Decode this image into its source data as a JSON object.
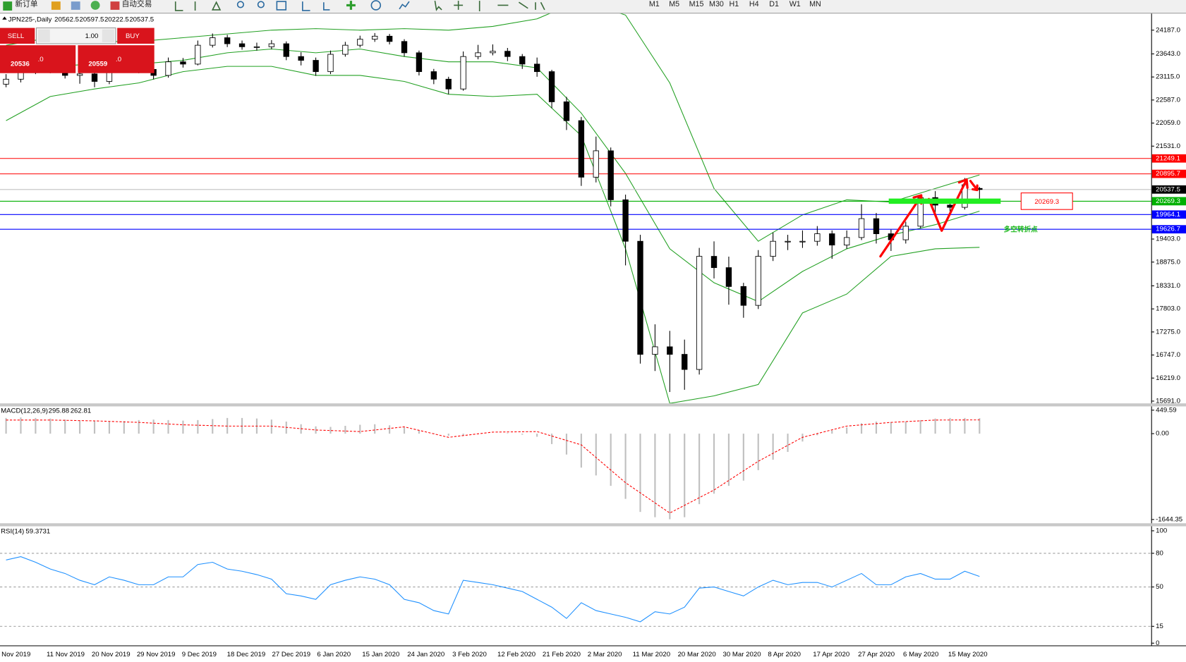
{
  "toolbar": {
    "new_order": "新订单",
    "auto_trading": "自动交易",
    "timeframes": [
      "M1",
      "M5",
      "M15",
      "M30",
      "H1",
      "H4",
      "D1",
      "W1",
      "MN"
    ]
  },
  "trade_panel": {
    "sell": "SELL",
    "buy": "BUY",
    "lot": "1.00",
    "bid": "20536",
    "bid_fraction": ".0",
    "ask": "20559",
    "ask_fraction": ".0"
  },
  "chart_data": [
    {
      "type": "candlestick",
      "symbol": "JPN225-,Daily",
      "x_labels": [
        "Nov 2019",
        "11 Nov 2019",
        "20 Nov 2019",
        "29 Nov 2019",
        "9 Dec 2019",
        "18 Dec 2019",
        "27 Dec 2019",
        "6 Jan 2020",
        "15 Jan 2020",
        "24 Jan 2020",
        "3 Feb 2020",
        "12 Feb 2020",
        "21 Feb 2020",
        "2 Mar 2020",
        "11 Mar 2020",
        "20 Mar 2020",
        "30 Mar 2020",
        "8 Apr 2020",
        "17 Apr 2020",
        "27 Apr 2020",
        "6 May 2020",
        "15 May 2020"
      ],
      "open": [
        22950,
        23064,
        23236,
        23323,
        23289,
        23151,
        23185,
        23013,
        23289,
        23358,
        23289,
        23151,
        23462,
        23410,
        23842,
        24014,
        23876,
        23807,
        23807,
        23876,
        23583,
        23496,
        23237,
        23634,
        23842,
        23980,
        24049,
        23928,
        23669,
        23237,
        23064,
        22840,
        23583,
        23669,
        23704,
        23583,
        23410,
        23237,
        22546,
        22115,
        20820,
        21424,
        20302,
        19352,
        16762,
        16935,
        16762,
        16416,
        19007,
        18748,
        18316,
        17884,
        19007,
        19352,
        19352,
        19352,
        19524,
        19265,
        19438,
        19870,
        19524,
        19386,
        19697,
        20353,
        20180,
        20129,
        20562.5
      ],
      "high": [
        23180,
        23330,
        23420,
        23400,
        23360,
        23280,
        23250,
        23380,
        23450,
        23430,
        23350,
        23560,
        23550,
        23950,
        24110,
        24080,
        23950,
        23900,
        23960,
        23930,
        23680,
        23560,
        23720,
        23920,
        24060,
        24120,
        24100,
        23980,
        23720,
        23300,
        23120,
        23700,
        23850,
        23860,
        23780,
        23640,
        23560,
        23280,
        22660,
        22200,
        21750,
        21500,
        20420,
        19500,
        17450,
        17300,
        17100,
        19200,
        19350,
        19000,
        18400,
        19150,
        19550,
        19500,
        19600,
        19700,
        19600,
        19600,
        20200,
        20000,
        19620,
        19800,
        20400,
        20500,
        20300,
        20800,
        20597.5
      ],
      "low": [
        22880,
        22990,
        23180,
        23200,
        23080,
        22960,
        22880,
        22950,
        23220,
        23200,
        23060,
        23100,
        23330,
        23380,
        23790,
        23800,
        23740,
        23720,
        23750,
        23500,
        23380,
        23140,
        23180,
        23580,
        23790,
        23920,
        23860,
        23580,
        23150,
        22950,
        22720,
        22800,
        23520,
        23610,
        23480,
        23300,
        23120,
        22400,
        21900,
        20620,
        20700,
        20150,
        18800,
        16550,
        16380,
        15900,
        15950,
        16300,
        18500,
        17900,
        17600,
        17800,
        18900,
        19150,
        19200,
        19250,
        18950,
        19180,
        19380,
        19300,
        19130,
        19300,
        19650,
        19980,
        19950,
        20080,
        20222.5
      ],
      "close": [
        23064,
        23236,
        23323,
        23289,
        23151,
        23185,
        23013,
        23289,
        23358,
        23289,
        23151,
        23462,
        23410,
        23842,
        24014,
        23876,
        23807,
        23807,
        23876,
        23583,
        23496,
        23237,
        23634,
        23842,
        23980,
        24049,
        23928,
        23669,
        23237,
        23064,
        22840,
        23583,
        23669,
        23704,
        23583,
        23410,
        23237,
        22546,
        22115,
        20820,
        21424,
        20302,
        19352,
        16762,
        16935,
        16762,
        16416,
        19007,
        18748,
        18316,
        17884,
        19007,
        19352,
        19352,
        19352,
        19524,
        19265,
        19438,
        19870,
        19524,
        19386,
        19697,
        20353,
        20180,
        20129,
        20647,
        20537.5
      ],
      "bollinger": {
        "color": "#22a022",
        "upper": [
          23842,
          24014,
          23928,
          23928,
          24014,
          24101,
          24187,
          24222,
          24187,
          24222,
          24187,
          24273,
          24446,
          24878,
          24532,
          22978,
          20561,
          19352,
          19956,
          20302,
          20250,
          20561,
          20871
        ],
        "middle": [
          23237,
          23358,
          23410,
          23410,
          23496,
          23669,
          23755,
          23669,
          23755,
          23583,
          23462,
          23462,
          23324,
          22288,
          20906,
          19179,
          18402,
          17971,
          18661,
          19179,
          19490,
          19732,
          20043
        ],
        "lower": [
          22115,
          22667,
          22840,
          22978,
          23237,
          23358,
          23358,
          23151,
          23151,
          23013,
          22719,
          22667,
          22719,
          21769,
          19179,
          15639,
          15812,
          16071,
          17712,
          18143,
          19007,
          19179,
          19214
        ]
      },
      "ylim": [
        15639,
        24567
      ],
      "yticks": [
        {
          "value": 24187,
          "label": "24187.0"
        },
        {
          "value": 23643,
          "label": "23643.0"
        },
        {
          "value": 23115,
          "label": "23115.0"
        },
        {
          "value": 22587,
          "label": "22587.0"
        },
        {
          "value": 22059,
          "label": "22059.0"
        },
        {
          "value": 21531,
          "label": "21531.0"
        },
        {
          "value": 19403,
          "label": "19403.0"
        },
        {
          "value": 18875,
          "label": "18875.0"
        },
        {
          "value": 18331,
          "label": "18331.0"
        },
        {
          "value": 17803,
          "label": "17803.0"
        },
        {
          "value": 17275,
          "label": "17275.0"
        },
        {
          "value": 16747,
          "label": "16747.0"
        },
        {
          "value": 16219,
          "label": "16219.0"
        },
        {
          "value": 15691,
          "label": "15691.0"
        }
      ],
      "levels": [
        {
          "value": 21249.1,
          "color": "#ff0000"
        },
        {
          "value": 20895.7,
          "color": "#ff0000"
        },
        {
          "value": 20537.5,
          "color": "#000000"
        },
        {
          "value": 20269.3,
          "color": "#00b000"
        },
        {
          "value": 19964.1,
          "color": "#0000ff"
        },
        {
          "value": 19626.7,
          "color": "#0000ff"
        }
      ],
      "annotation": "多空转折点"
    },
    {
      "type": "macd",
      "label": "MACD(12,26,9)",
      "values": [
        300,
        310,
        300,
        290,
        270,
        250,
        240,
        230,
        240,
        260,
        270,
        260,
        250,
        260,
        280,
        300,
        300,
        290,
        270,
        230,
        180,
        140,
        130,
        150,
        170,
        180,
        160,
        120,
        60,
        10,
        -40,
        -40,
        -10,
        0,
        10,
        -20,
        -60,
        -200,
        -400,
        -650,
        -800,
        -1000,
        -1250,
        -1500,
        -1600,
        -1640,
        -1600,
        -1350,
        -1150,
        -1000,
        -900,
        -700,
        -500,
        -350,
        -150,
        -30,
        60,
        120,
        200,
        230,
        220,
        230,
        260,
        290,
        300,
        300,
        295.88
      ],
      "signal": [
        260,
        260,
        245,
        215,
        170,
        145,
        145,
        70,
        40,
        130,
        -70,
        30,
        40,
        -215,
        -940,
        -1520,
        -1080,
        -530,
        -70,
        145,
        215,
        260,
        262.81
      ],
      "color": "#c0c0c0",
      "signal_color": "#ff0000",
      "ylim": [
        -1644.35,
        449.59
      ],
      "yticks": [
        449.59,
        {
          "value": 0,
          "label": "0.00"
        },
        -1644.35
      ]
    },
    {
      "type": "rsi",
      "label": "RSI(14)",
      "values": [
        74,
        77,
        72,
        66,
        62,
        56,
        52,
        59,
        56,
        52,
        52,
        59,
        59,
        70,
        72,
        66,
        64,
        61,
        57,
        44,
        42,
        39,
        52,
        56,
        59,
        57,
        52,
        39,
        36,
        29,
        26,
        56,
        54,
        52,
        49,
        46,
        39,
        32,
        22,
        36,
        29,
        26,
        23,
        19,
        28,
        26,
        32,
        49,
        50,
        46,
        42,
        50,
        56,
        52,
        54,
        54,
        50,
        56,
        62,
        52,
        52,
        59,
        62,
        57,
        57,
        64,
        59.3731
      ],
      "color": "#1e90ff",
      "ylim": [
        0,
        100
      ],
      "yticks": [
        100,
        80,
        50,
        15,
        0
      ]
    }
  ]
}
